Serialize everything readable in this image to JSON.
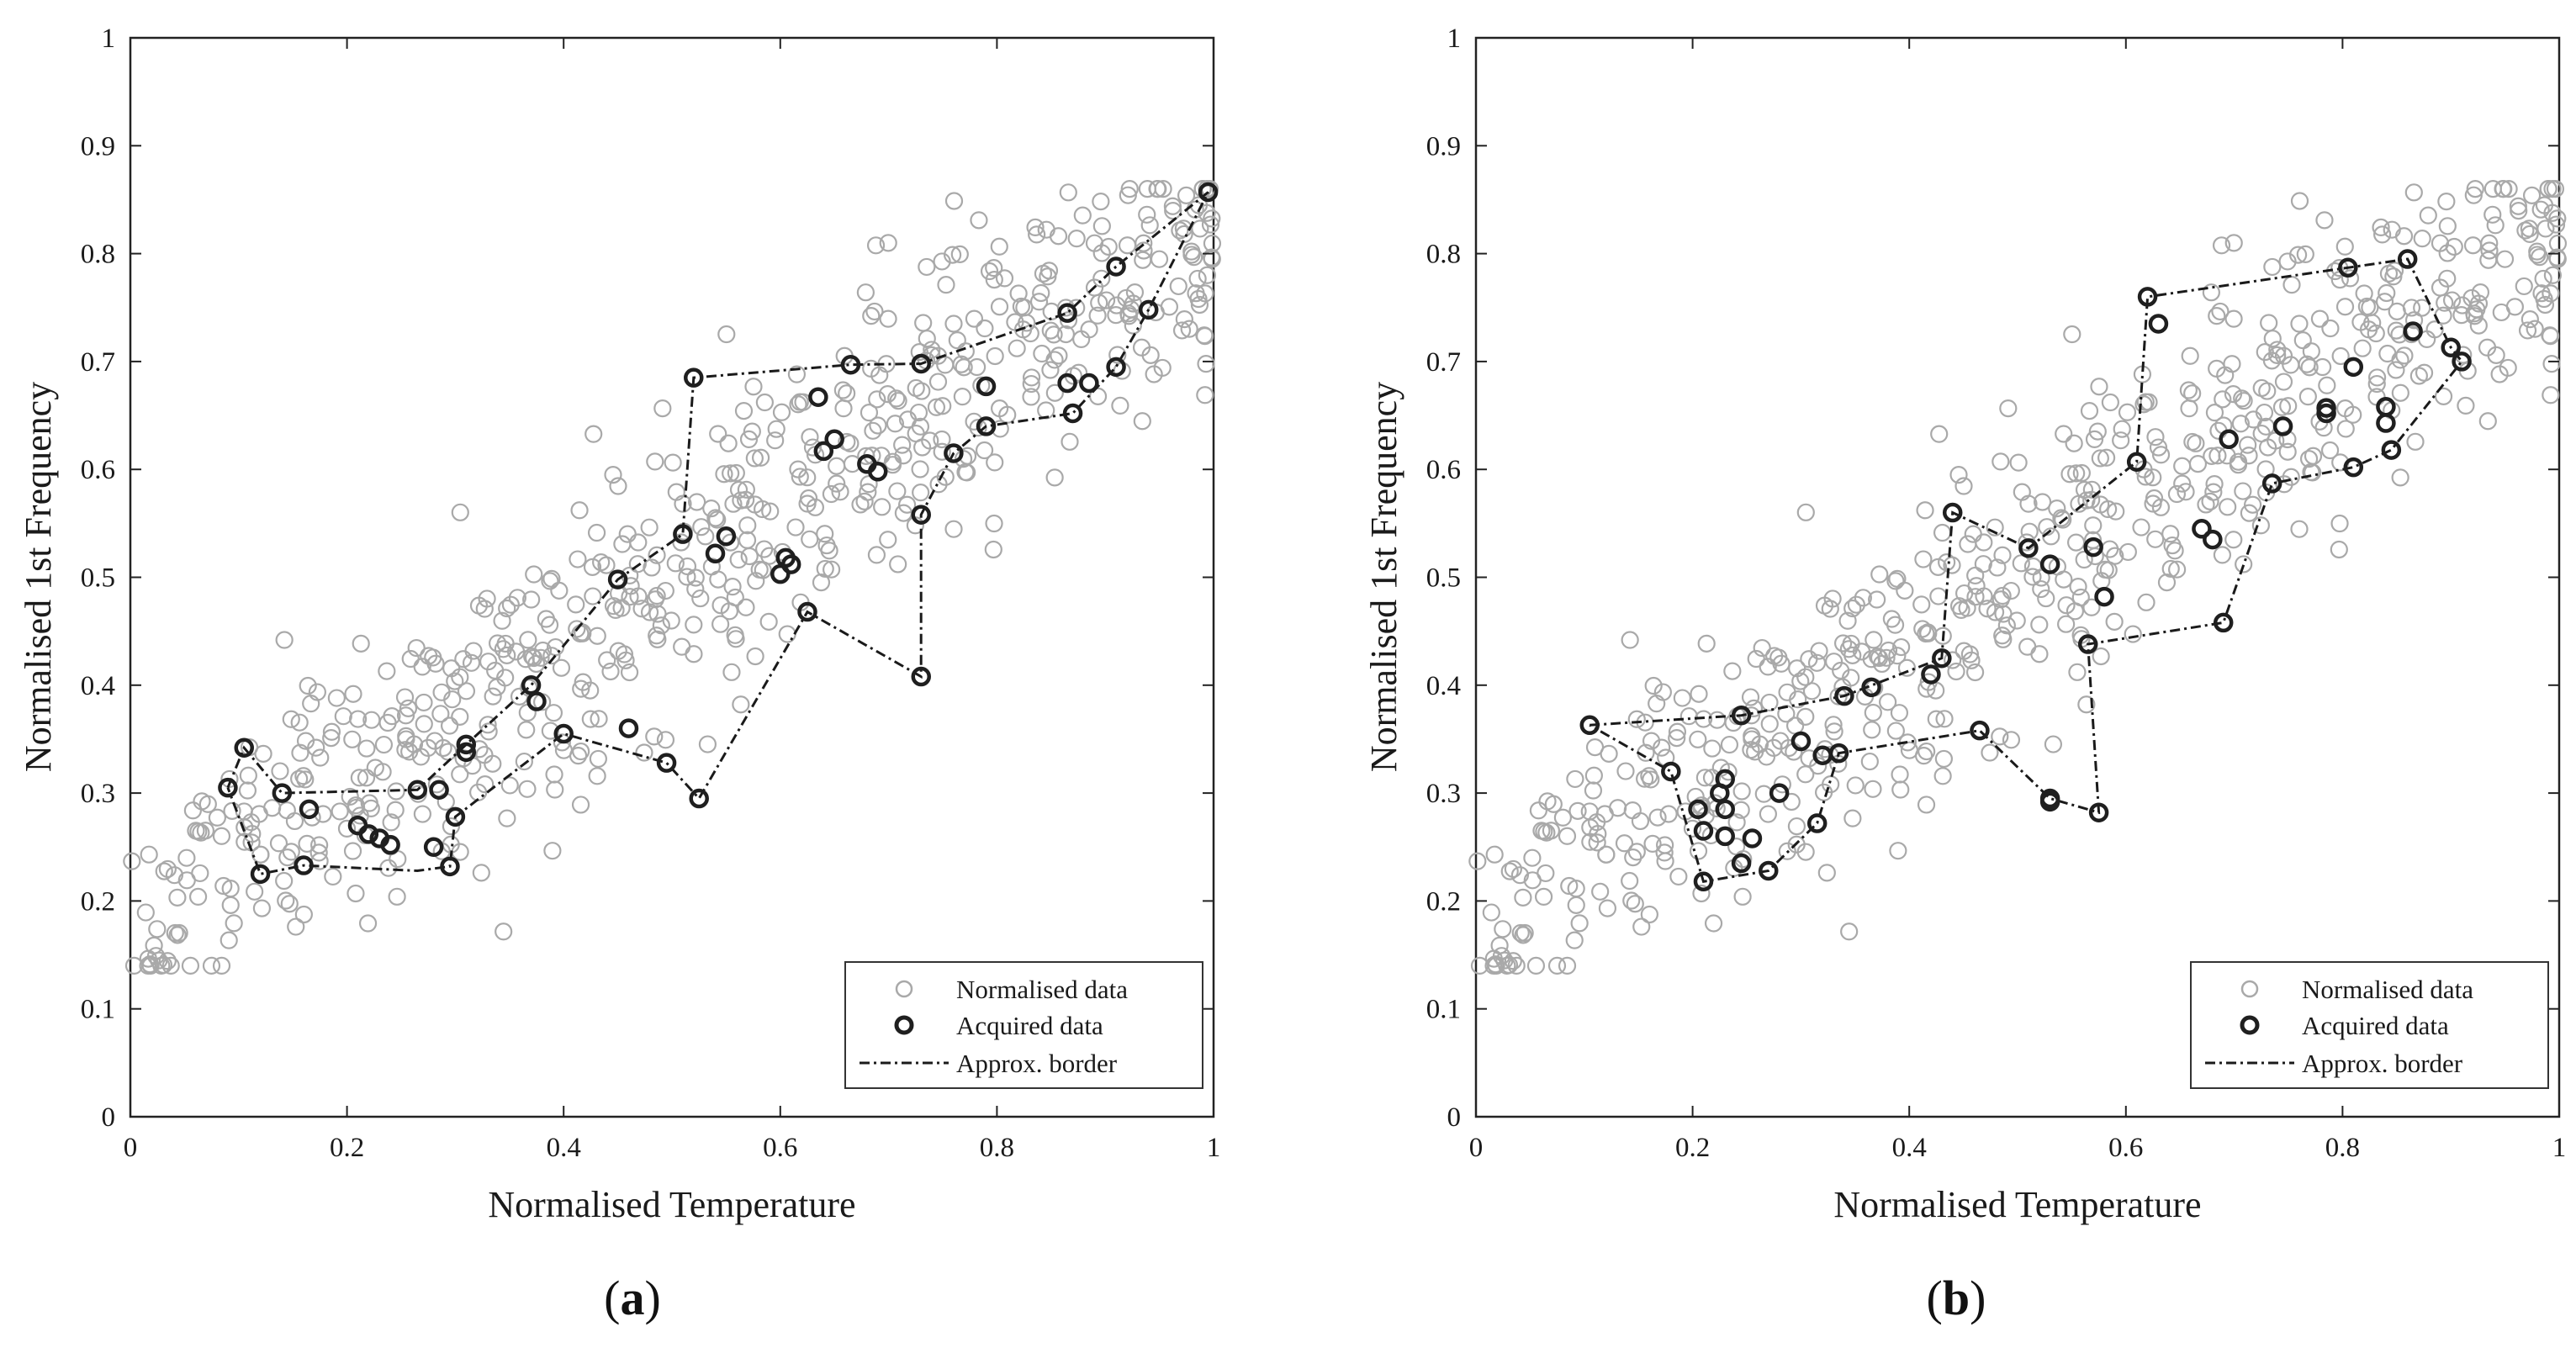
{
  "colors": {
    "normalised": "#a9a9a9",
    "acquired": "#1f1f1f",
    "border": "#1a1a1a"
  },
  "chart_data": [
    {
      "type": "scatter",
      "panel_prefix": "(",
      "panel_letter": "a",
      "panel_suffix": ")",
      "xlabel": "Normalised Temperature",
      "ylabel": "Normalised 1st Frequency",
      "xlim": [
        0,
        1
      ],
      "ylim": [
        0,
        1
      ],
      "xticks": [
        "0",
        "0.2",
        "0.4",
        "0.6",
        "0.8",
        "1"
      ],
      "yticks": [
        "0",
        "0.1",
        "0.2",
        "0.3",
        "0.4",
        "0.5",
        "0.6",
        "0.7",
        "0.8",
        "0.9",
        "1"
      ],
      "legend": {
        "position": "bottom-right",
        "items": [
          "Normalised data",
          "Acquired data",
          "Approx. border"
        ]
      },
      "acquired": [
        [
          0.09,
          0.305
        ],
        [
          0.105,
          0.342
        ],
        [
          0.12,
          0.225
        ],
        [
          0.14,
          0.3
        ],
        [
          0.16,
          0.233
        ],
        [
          0.165,
          0.285
        ],
        [
          0.21,
          0.27
        ],
        [
          0.22,
          0.262
        ],
        [
          0.23,
          0.258
        ],
        [
          0.24,
          0.252
        ],
        [
          0.265,
          0.303
        ],
        [
          0.28,
          0.25
        ],
        [
          0.285,
          0.303
        ],
        [
          0.295,
          0.232
        ],
        [
          0.3,
          0.278
        ],
        [
          0.31,
          0.345
        ],
        [
          0.31,
          0.338
        ],
        [
          0.37,
          0.4
        ],
        [
          0.375,
          0.385
        ],
        [
          0.4,
          0.355
        ],
        [
          0.45,
          0.498
        ],
        [
          0.46,
          0.36
        ],
        [
          0.495,
          0.328
        ],
        [
          0.51,
          0.54
        ],
        [
          0.52,
          0.685
        ],
        [
          0.525,
          0.295
        ],
        [
          0.54,
          0.522
        ],
        [
          0.55,
          0.538
        ],
        [
          0.6,
          0.503
        ],
        [
          0.605,
          0.518
        ],
        [
          0.61,
          0.512
        ],
        [
          0.625,
          0.468
        ],
        [
          0.635,
          0.667
        ],
        [
          0.64,
          0.617
        ],
        [
          0.65,
          0.628
        ],
        [
          0.665,
          0.697
        ],
        [
          0.68,
          0.605
        ],
        [
          0.69,
          0.598
        ],
        [
          0.73,
          0.698
        ],
        [
          0.73,
          0.558
        ],
        [
          0.73,
          0.408
        ],
        [
          0.76,
          0.615
        ],
        [
          0.79,
          0.677
        ],
        [
          0.79,
          0.64
        ],
        [
          0.865,
          0.745
        ],
        [
          0.865,
          0.68
        ],
        [
          0.87,
          0.652
        ],
        [
          0.885,
          0.68
        ],
        [
          0.91,
          0.788
        ],
        [
          0.91,
          0.695
        ],
        [
          0.94,
          0.748
        ],
        [
          0.995,
          0.857
        ]
      ],
      "border": [
        [
          [
            0.09,
            0.305
          ],
          [
            0.105,
            0.342
          ],
          [
            0.14,
            0.3
          ],
          [
            0.265,
            0.303
          ],
          [
            0.31,
            0.345
          ],
          [
            0.37,
            0.4
          ],
          [
            0.45,
            0.498
          ],
          [
            0.51,
            0.54
          ],
          [
            0.52,
            0.685
          ],
          [
            0.665,
            0.697
          ],
          [
            0.73,
            0.698
          ],
          [
            0.865,
            0.745
          ],
          [
            0.91,
            0.788
          ],
          [
            0.995,
            0.857
          ],
          [
            0.94,
            0.748
          ],
          [
            0.91,
            0.695
          ],
          [
            0.87,
            0.652
          ],
          [
            0.79,
            0.64
          ],
          [
            0.76,
            0.615
          ],
          [
            0.73,
            0.558
          ],
          [
            0.73,
            0.408
          ],
          [
            0.625,
            0.468
          ],
          [
            0.525,
            0.295
          ],
          [
            0.495,
            0.328
          ],
          [
            0.4,
            0.355
          ],
          [
            0.3,
            0.278
          ],
          [
            0.295,
            0.232
          ],
          [
            0.265,
            0.228
          ],
          [
            0.16,
            0.233
          ],
          [
            0.12,
            0.225
          ],
          [
            0.09,
            0.305
          ]
        ]
      ]
    },
    {
      "type": "scatter",
      "panel_prefix": "(",
      "panel_letter": "b",
      "panel_suffix": ")",
      "xlabel": "Normalised Temperature",
      "ylabel": "Normalised 1st Frequency",
      "xlim": [
        0,
        1
      ],
      "ylim": [
        0,
        1
      ],
      "xticks": [
        "0",
        "0.2",
        "0.4",
        "0.6",
        "0.8",
        "1"
      ],
      "yticks": [
        "0",
        "0.1",
        "0.2",
        "0.3",
        "0.4",
        "0.5",
        "0.6",
        "0.7",
        "0.8",
        "0.9",
        "1"
      ],
      "legend": {
        "position": "bottom-right",
        "items": [
          "Normalised data",
          "Acquired data",
          "Approx. border"
        ]
      },
      "acquired": [
        [
          0.105,
          0.363
        ],
        [
          0.18,
          0.32
        ],
        [
          0.205,
          0.285
        ],
        [
          0.21,
          0.218
        ],
        [
          0.21,
          0.265
        ],
        [
          0.225,
          0.3
        ],
        [
          0.23,
          0.285
        ],
        [
          0.23,
          0.26
        ],
        [
          0.23,
          0.313
        ],
        [
          0.245,
          0.372
        ],
        [
          0.245,
          0.235
        ],
        [
          0.255,
          0.258
        ],
        [
          0.27,
          0.228
        ],
        [
          0.28,
          0.3
        ],
        [
          0.3,
          0.348
        ],
        [
          0.315,
          0.272
        ],
        [
          0.32,
          0.335
        ],
        [
          0.335,
          0.337
        ],
        [
          0.34,
          0.39
        ],
        [
          0.365,
          0.398
        ],
        [
          0.42,
          0.41
        ],
        [
          0.43,
          0.425
        ],
        [
          0.44,
          0.56
        ],
        [
          0.465,
          0.358
        ],
        [
          0.51,
          0.527
        ],
        [
          0.53,
          0.295
        ],
        [
          0.53,
          0.292
        ],
        [
          0.53,
          0.512
        ],
        [
          0.565,
          0.438
        ],
        [
          0.57,
          0.528
        ],
        [
          0.575,
          0.282
        ],
        [
          0.58,
          0.482
        ],
        [
          0.61,
          0.607
        ],
        [
          0.62,
          0.76
        ],
        [
          0.63,
          0.735
        ],
        [
          0.67,
          0.545
        ],
        [
          0.68,
          0.535
        ],
        [
          0.69,
          0.458
        ],
        [
          0.695,
          0.628
        ],
        [
          0.735,
          0.587
        ],
        [
          0.745,
          0.64
        ],
        [
          0.785,
          0.652
        ],
        [
          0.785,
          0.657
        ],
        [
          0.805,
          0.787
        ],
        [
          0.81,
          0.602
        ],
        [
          0.81,
          0.695
        ],
        [
          0.84,
          0.658
        ],
        [
          0.84,
          0.643
        ],
        [
          0.845,
          0.618
        ],
        [
          0.86,
          0.795
        ],
        [
          0.865,
          0.728
        ],
        [
          0.9,
          0.713
        ],
        [
          0.91,
          0.7
        ]
      ],
      "border": [
        [
          [
            0.105,
            0.363
          ],
          [
            0.245,
            0.372
          ],
          [
            0.34,
            0.39
          ],
          [
            0.43,
            0.425
          ],
          [
            0.44,
            0.56
          ],
          [
            0.51,
            0.527
          ],
          [
            0.61,
            0.607
          ],
          [
            0.62,
            0.76
          ],
          [
            0.805,
            0.787
          ],
          [
            0.86,
            0.795
          ],
          [
            0.9,
            0.713
          ],
          [
            0.91,
            0.7
          ],
          [
            0.845,
            0.618
          ],
          [
            0.81,
            0.602
          ],
          [
            0.735,
            0.587
          ],
          [
            0.69,
            0.458
          ],
          [
            0.565,
            0.438
          ],
          [
            0.575,
            0.282
          ],
          [
            0.53,
            0.295
          ],
          [
            0.465,
            0.358
          ],
          [
            0.335,
            0.337
          ],
          [
            0.315,
            0.272
          ],
          [
            0.27,
            0.228
          ],
          [
            0.21,
            0.218
          ],
          [
            0.18,
            0.32
          ],
          [
            0.105,
            0.363
          ]
        ]
      ]
    }
  ]
}
